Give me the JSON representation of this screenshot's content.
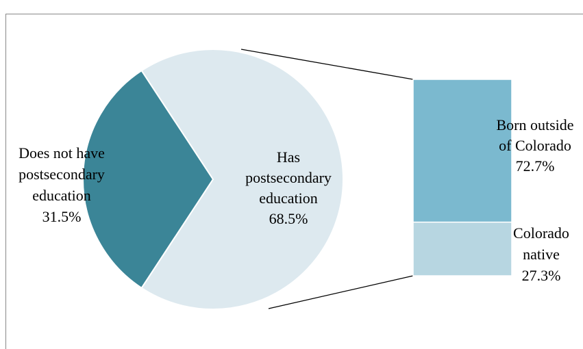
{
  "chart_data": {
    "type": "pie",
    "labels": [
      [
        "Does not have",
        "postsecondary",
        "education"
      ],
      [
        "Has",
        "postsecondary",
        "education"
      ]
    ],
    "values": [
      31.5,
      68.5
    ],
    "value_labels": [
      "31.5%",
      "68.5%"
    ],
    "colors": [
      "#3b8597",
      "#dde9ef"
    ],
    "bar": {
      "labels": [
        [
          "Born outside",
          "of Colorado"
        ],
        [
          "Colorado",
          "native"
        ]
      ],
      "values": [
        72.7,
        27.3
      ],
      "value_labels": [
        "72.7%",
        "27.3%"
      ],
      "colors": [
        "#7bb9cf",
        "#b7d6e1"
      ]
    }
  }
}
